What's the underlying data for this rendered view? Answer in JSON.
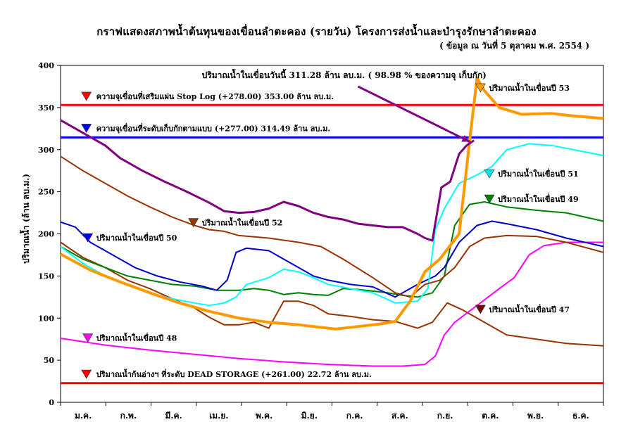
{
  "chart_data": {
    "type": "line",
    "title": "กราฟแสดงสภาพน้ำต้นทุนของเขื่อนลำตะคอง (รายวัน)    โครงการส่งน้ำและบำรุงรักษาลำตะคอง",
    "subtitle": "( ข้อมูล ณ วันที่   5   ตุลาคม  พ.ศ. 2554 )",
    "ylabel": "ปริมาณน้ำ (ล้าน ลบ.ม.)",
    "xlabel": "",
    "ylim": [
      0,
      400
    ],
    "yticks": [
      0,
      50,
      100,
      150,
      200,
      250,
      300,
      350,
      400
    ],
    "xlim": [
      0,
      365
    ],
    "months": [
      "ม.ค.",
      "ก.พ.",
      "มี.ค.",
      "เม.ย.",
      "พ.ค.",
      "มิ.ย.",
      "ก.ค.",
      "ส.ค.",
      "ก.ย.",
      "ต.ค.",
      "พ.ย.",
      "ธ.ค."
    ],
    "reference_lines": [
      {
        "name": "ความจุเขื่อนที่เสริมแผ่น Stop Log",
        "value": 353.0,
        "color": "#ff0000",
        "label": "ความจุเขื่อนที่เสริมแผ่น Stop Log  (+278.00)  353.00  ล้าน ลบ.ม.",
        "label_x": 24,
        "label_y": 360
      },
      {
        "name": "ความจุเขื่อนที่ระดับเก็บกักตามแบบ",
        "value": 314.49,
        "color": "#0000ff",
        "label": "ความจุเขื่อนที่ระดับเก็บกักตามแบบ  (+277.00)  314.49  ล้าน ลบ.ม.",
        "label_x": 24,
        "label_y": 322
      },
      {
        "name": "ปริมาณน้ำก้นอ่างฯ ที่ระดับ DEAD STORAGE",
        "value": 22.72,
        "color": "#ff0000",
        "label": "ปริมาณน้ำก้นอ่างฯ ที่ระดับ  DEAD STORAGE  (+261.00)  22.72  ล้าน ลบ.ม.",
        "label_x": 24,
        "label_y": 30
      }
    ],
    "series": [
      {
        "name": "ปริมาณน้ำในเขื่อนปี 47",
        "color": "#993300",
        "width": 2,
        "label_x": 288,
        "label_y": 107,
        "marker_color": "#7a0000",
        "x": [
          0,
          15,
          30,
          45,
          60,
          75,
          90,
          100,
          110,
          120,
          130,
          140,
          150,
          160,
          170,
          180,
          195,
          210,
          225,
          240,
          250,
          260,
          270,
          280,
          290,
          300,
          320,
          340,
          365
        ],
        "y": [
          190,
          172,
          160,
          145,
          135,
          123,
          112,
          101,
          92,
          92,
          95,
          88,
          120,
          120,
          115,
          105,
          102,
          98,
          96,
          88,
          95,
          118,
          110,
          100,
          90,
          80,
          75,
          70,
          67
        ]
      },
      {
        "name": "ปริมาณน้ำในเขื่อนปี 48",
        "color": "#ff00ff",
        "width": 2,
        "label_x": 24,
        "label_y": 73,
        "marker_color": "#ff00ff",
        "x": [
          0,
          15,
          30,
          60,
          90,
          120,
          150,
          180,
          210,
          230,
          245,
          252,
          258,
          265,
          280,
          295,
          305,
          315,
          325,
          340,
          365
        ],
        "y": [
          76,
          72,
          68,
          62,
          57,
          52,
          48,
          45,
          43,
          43,
          45,
          55,
          80,
          95,
          115,
          135,
          148,
          175,
          186,
          190,
          190
        ]
      },
      {
        "name": "ปริมาณน้ำในเขื่อนปี 49",
        "color": "#008000",
        "width": 2,
        "label_x": 294,
        "label_y": 238,
        "marker_color": "#008000",
        "x": [
          0,
          15,
          30,
          45,
          60,
          75,
          90,
          105,
          120,
          130,
          140,
          150,
          160,
          170,
          180,
          190,
          200,
          210,
          220,
          230,
          240,
          250,
          258,
          265,
          275,
          285,
          300,
          320,
          340,
          365
        ],
        "y": [
          185,
          170,
          160,
          150,
          145,
          140,
          138,
          133,
          133,
          135,
          133,
          128,
          130,
          128,
          127,
          135,
          134,
          132,
          130,
          127,
          125,
          130,
          150,
          210,
          235,
          238,
          232,
          228,
          225,
          215
        ]
      },
      {
        "name": "ปริมาณน้ำในเขื่อนปี 50",
        "color": "#0000cc",
        "width": 2,
        "label_x": 24,
        "label_y": 192,
        "marker_color": "#0000ff",
        "x": [
          0,
          10,
          20,
          35,
          50,
          65,
          80,
          95,
          105,
          112,
          118,
          125,
          140,
          150,
          160,
          170,
          180,
          195,
          210,
          225,
          240,
          252,
          258,
          268,
          280,
          290,
          300,
          320,
          340,
          365
        ],
        "y": [
          214,
          208,
          190,
          175,
          160,
          150,
          143,
          138,
          133,
          145,
          178,
          183,
          180,
          170,
          160,
          150,
          145,
          140,
          137,
          125,
          140,
          150,
          160,
          190,
          210,
          215,
          212,
          205,
          195,
          185
        ]
      },
      {
        "name": "ปริมาณน้ำในเขื่อนปี 51",
        "color": "#00ffff",
        "width": 2,
        "label_x": 294,
        "label_y": 268,
        "marker_color": "#00e5e5",
        "x": [
          0,
          15,
          30,
          45,
          60,
          75,
          90,
          100,
          110,
          118,
          125,
          140,
          150,
          160,
          170,
          180,
          195,
          210,
          225,
          240,
          247,
          252,
          258,
          268,
          280,
          290,
          300,
          315,
          330,
          345,
          365
        ],
        "y": [
          185,
          165,
          150,
          140,
          130,
          123,
          118,
          115,
          118,
          125,
          140,
          148,
          158,
          155,
          148,
          140,
          135,
          130,
          118,
          120,
          135,
          205,
          230,
          260,
          270,
          280,
          300,
          307,
          305,
          300,
          293
        ]
      },
      {
        "name": "ปริมาณน้ำในเขื่อนปี 52",
        "color": "#993300",
        "width": 2,
        "label_x": 95,
        "label_y": 210,
        "marker_color": "#993300",
        "x": [
          0,
          15,
          30,
          45,
          60,
          75,
          90,
          100,
          110,
          120,
          140,
          160,
          175,
          190,
          210,
          225,
          235,
          245,
          255,
          265,
          275,
          285,
          300,
          320,
          340,
          365
        ],
        "y": [
          292,
          275,
          260,
          245,
          232,
          220,
          210,
          205,
          203,
          198,
          195,
          190,
          185,
          170,
          148,
          130,
          125,
          140,
          145,
          160,
          185,
          195,
          198,
          197,
          190,
          178
        ]
      },
      {
        "name": "ปริมาณน้ำในเขื่อนปี 53",
        "color": "#ff9900",
        "width": 4,
        "label_x": 288,
        "label_y": 370,
        "marker_color": "#ff9900",
        "x": [
          0,
          20,
          40,
          60,
          80,
          100,
          120,
          140,
          160,
          175,
          185,
          200,
          215,
          225,
          235,
          245,
          255,
          268,
          275,
          280,
          285,
          295,
          310,
          330,
          345,
          365
        ],
        "y": [
          176,
          157,
          143,
          130,
          118,
          108,
          100,
          95,
          92,
          89,
          87,
          90,
          93,
          96,
          120,
          155,
          170,
          200,
          310,
          385,
          370,
          350,
          342,
          343,
          340,
          337
        ]
      },
      {
        "name": "ปริมาณน้ำในเขื่อน",
        "color": "#800080",
        "width": 3,
        "label_x": 95,
        "label_y": 385,
        "marker_color": "#800080",
        "x": [
          0,
          10,
          20,
          30,
          40,
          55,
          70,
          85,
          100,
          110,
          120,
          130,
          140,
          150,
          160,
          170,
          180,
          190,
          200,
          210,
          220,
          230,
          240,
          245,
          250,
          256,
          262,
          268,
          273,
          278
        ],
        "y": [
          335,
          325,
          315,
          305,
          290,
          275,
          262,
          250,
          237,
          227,
          225,
          226,
          230,
          238,
          233,
          225,
          220,
          217,
          212,
          210,
          208,
          208,
          200,
          195,
          192,
          255,
          262,
          295,
          305,
          311
        ]
      }
    ],
    "series_labels": [
      {
        "text": "ปริมาณน้ำในเขื่อนปี 53",
        "series": 6
      },
      {
        "text": "ปริมาณน้ำในเขื่อนปี 51",
        "series": 4
      },
      {
        "text": "ปริมาณน้ำในเขื่อนปี 49",
        "series": 2
      },
      {
        "text": "ปริมาณน้ำในเขื่อนปี 52",
        "series": 5
      },
      {
        "text": "ปริมาณน้ำในเขื่อนปี 50",
        "series": 3
      },
      {
        "text": "ปริมาณน้ำในเขื่อนปี 47",
        "series": 0
      },
      {
        "text": "ปริมาณน้ำในเขื่อนปี 48",
        "series": 1
      }
    ],
    "annotation": {
      "text": "ปริมาณน้ำในเขื่อนวันนี้   311.28   ล้าน  ลบ.ม.  ( 98.98 % ของความจุ เก็บกัก)",
      "value": 311.28,
      "percent": 98.98,
      "arrow_color": "#800080"
    }
  }
}
